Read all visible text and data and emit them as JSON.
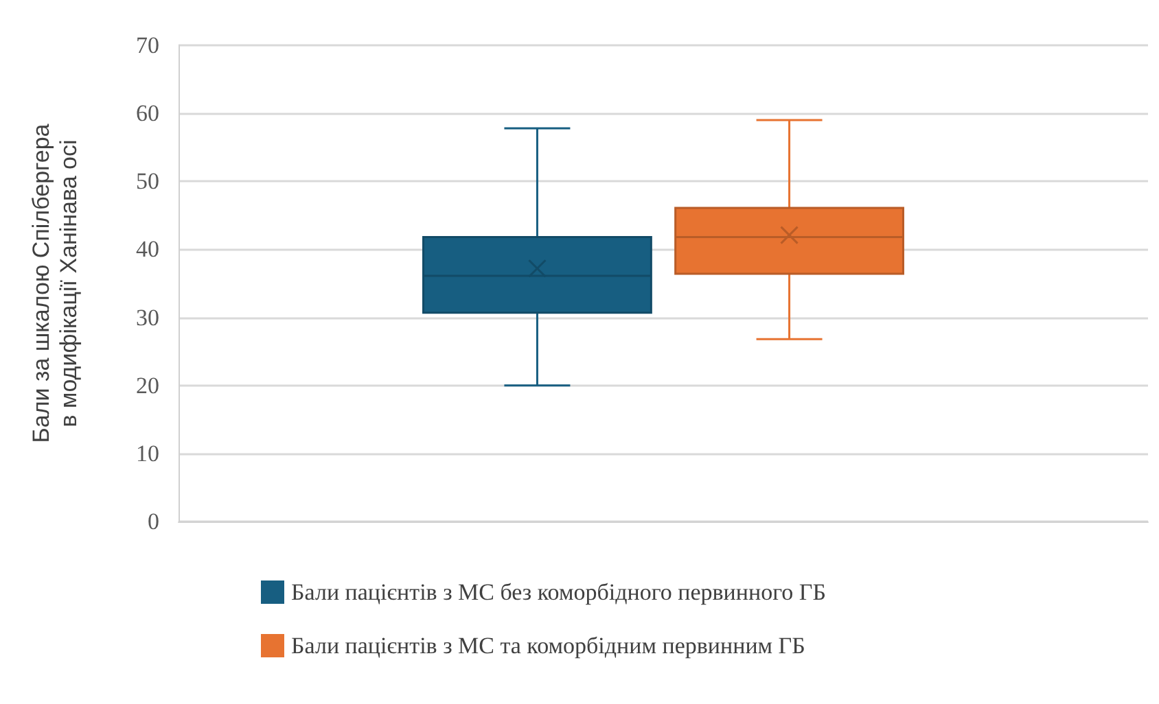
{
  "chart_data": {
    "type": "box",
    "ylabel": "Бали за шкалою Спілбергера в модифікації Ханінава осі",
    "categories": [
      null
    ],
    "ylim": [
      0,
      70
    ],
    "yticks": [
      0,
      10,
      20,
      30,
      40,
      50,
      60,
      70
    ],
    "grid": "y",
    "legend": "bottom",
    "marker": "cross",
    "series": [
      {
        "name": "Бали пацієнтів з МС без коморбідного первинного ГБ",
        "color": "#175e81",
        "boxes": [
          {
            "low": 20,
            "q1": 30.7,
            "median": 36.1,
            "q3": 41.8,
            "high": 57.8,
            "mean": 37.2
          }
        ]
      },
      {
        "name": "Бали пацієнтів з МС та коморбідним первинним ГБ",
        "color": "#e77331",
        "boxes": [
          {
            "low": 26.8,
            "q1": 36.4,
            "median": 41.8,
            "q3": 46.1,
            "high": 59,
            "mean": 42.1
          }
        ]
      }
    ]
  }
}
